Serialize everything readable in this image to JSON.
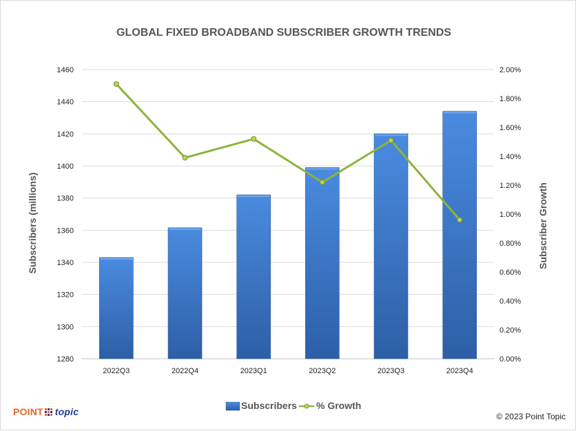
{
  "chart_data": {
    "type": "bar",
    "title": "GLOBAL FIXED BROADBAND SUBSCRIBER GROWTH TRENDS",
    "xlabel": "",
    "ylabel": "Subscribers (millions)",
    "y2label": "Subscriber Growth",
    "categories": [
      "2022Q3",
      "2022Q4",
      "2023Q1",
      "2023Q2",
      "2023Q3",
      "2023Q4"
    ],
    "series": [
      {
        "name": "Subscribers",
        "type": "bar",
        "axis": "left",
        "color": "#3c78c8",
        "values": [
          1343,
          1361.5,
          1382,
          1399,
          1420,
          1434
        ]
      },
      {
        "name": "% Growth",
        "type": "line",
        "axis": "right",
        "color": "#8db33a",
        "values": [
          1.9,
          1.39,
          1.52,
          1.22,
          1.51,
          0.96
        ]
      }
    ],
    "ylim": [
      1280,
      1460
    ],
    "yticks": [
      "1460",
      "1440",
      "1420",
      "1400",
      "1380",
      "1360",
      "1340",
      "1320",
      "1300",
      "1280"
    ],
    "y2lim": [
      0,
      2.0
    ],
    "y2ticks": [
      "2.00%",
      "1.80%",
      "1.60%",
      "1.40%",
      "1.20%",
      "1.00%",
      "0.80%",
      "0.60%",
      "0.40%",
      "0.20%",
      "0.00%"
    ],
    "grid": true,
    "legend": "bottom-center",
    "legend_entries": [
      "Subscribers",
      "% Growth"
    ]
  },
  "footer": {
    "logo_point": "POINT",
    "logo_topic": "topic",
    "copyright": "© 2023 Point Topic"
  }
}
